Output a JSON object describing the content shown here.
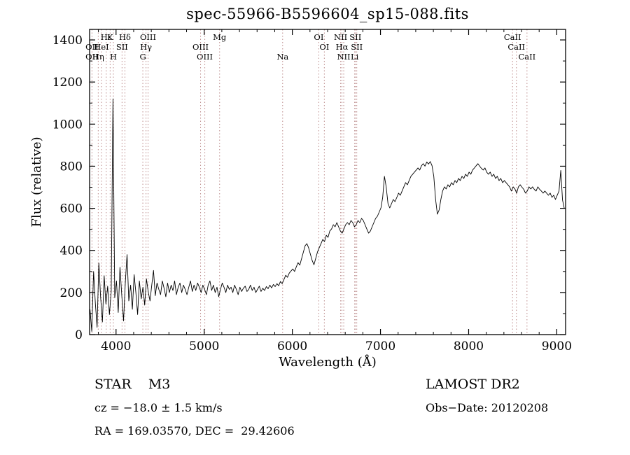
{
  "title": "spec-55966-B5596604_sp15-088.fits",
  "annotations": {
    "class_line": "STAR    M3",
    "survey": "LAMOST DR2",
    "cz_line": "cz = −18.0 ± 1.5 km/s",
    "obs_date": "Obs−Date: 20120208",
    "radec_line": "RA = 169.03570, DEC =  29.42606"
  },
  "chart_data": {
    "type": "line",
    "title": "spec-55966-B5596604_sp15-088.fits",
    "xlabel": "Wavelength (Å)",
    "ylabel": "Flux (relative)",
    "xlim": [
      3700,
      9100
    ],
    "ylim": [
      0,
      1450
    ],
    "x_ticks": [
      4000,
      5000,
      6000,
      7000,
      8000,
      9000
    ],
    "y_ticks": [
      0,
      200,
      400,
      600,
      800,
      1000,
      1200,
      1400
    ],
    "x_minor_step": 200,
    "y_minor_step": 100,
    "grid": false,
    "legend": "none",
    "colors": {
      "line": "#000000",
      "frame": "#000000",
      "marker": "#bb8a8a"
    },
    "x_start": 3705,
    "x_step": 20,
    "flux": [
      120,
      15,
      300,
      150,
      35,
      340,
      180,
      60,
      280,
      145,
      230,
      95,
      205,
      1120,
      175,
      255,
      105,
      320,
      185,
      65,
      245,
      380,
      160,
      235,
      120,
      285,
      200,
      95,
      255,
      170,
      225,
      140,
      265,
      205,
      160,
      235,
      305,
      185,
      245,
      215,
      190,
      255,
      220,
      180,
      245,
      200,
      235,
      210,
      255,
      190,
      225,
      245,
      200,
      235,
      215,
      190,
      225,
      255,
      205,
      235,
      210,
      245,
      225,
      200,
      235,
      215,
      190,
      235,
      255,
      210,
      235,
      200,
      225,
      180,
      215,
      245,
      225,
      200,
      235,
      215,
      225,
      200,
      235,
      215,
      190,
      225,
      205,
      220,
      230,
      205,
      215,
      235,
      210,
      225,
      200,
      215,
      230,
      205,
      220,
      210,
      228,
      218,
      235,
      222,
      238,
      228,
      242,
      232,
      252,
      242,
      262,
      282,
      272,
      292,
      302,
      312,
      300,
      322,
      342,
      330,
      362,
      392,
      422,
      432,
      412,
      382,
      352,
      332,
      362,
      392,
      412,
      432,
      452,
      442,
      472,
      462,
      492,
      502,
      522,
      512,
      532,
      512,
      492,
      482,
      502,
      522,
      532,
      522,
      542,
      532,
      512,
      522,
      542,
      532,
      552,
      542,
      522,
      502,
      482,
      492,
      512,
      532,
      552,
      562,
      582,
      602,
      652,
      752,
      702,
      622,
      602,
      622,
      642,
      632,
      652,
      672,
      662,
      682,
      702,
      722,
      712,
      732,
      752,
      762,
      772,
      782,
      792,
      782,
      802,
      812,
      800,
      820,
      810,
      822,
      802,
      752,
      642,
      572,
      592,
      642,
      682,
      702,
      692,
      712,
      702,
      722,
      712,
      732,
      722,
      742,
      732,
      752,
      742,
      762,
      752,
      772,
      762,
      782,
      792,
      802,
      812,
      800,
      790,
      782,
      792,
      772,
      762,
      772,
      752,
      762,
      742,
      752,
      732,
      742,
      722,
      732,
      722,
      712,
      702,
      682,
      702,
      692,
      672,
      702,
      712,
      700,
      690,
      672,
      682,
      702,
      692,
      702,
      690,
      682,
      702,
      690,
      682,
      672,
      682,
      672,
      662,
      672,
      652,
      662,
      642,
      662,
      682,
      780,
      640,
      600
    ],
    "line_markers": [
      3727,
      3798,
      3835,
      3889,
      3933,
      3970,
      4068,
      4101,
      4304,
      4340,
      4363,
      4959,
      5007,
      5175,
      5890,
      6300,
      6363,
      6548,
      6563,
      6583,
      6707,
      6716,
      6731,
      8498,
      8542,
      8662
    ],
    "label_rows": [
      [
        {
          "text": "Hε",
          "wavelength": 3889
        },
        {
          "text": "K",
          "wavelength": 3933
        },
        {
          "text": "Hδ",
          "wavelength": 4101
        },
        {
          "text": "OIII",
          "wavelength": 4363
        },
        {
          "text": "Mg",
          "wavelength": 5175
        },
        {
          "text": "OI",
          "wavelength": 6300
        },
        {
          "text": "NII",
          "wavelength": 6548
        },
        {
          "text": "SII",
          "wavelength": 6716
        },
        {
          "text": "CaII",
          "wavelength": 8498
        }
      ],
      [
        {
          "text": "OII",
          "wavelength": 3727
        },
        {
          "text": "HeI",
          "wavelength": 3835
        },
        {
          "text": "SII",
          "wavelength": 4068
        },
        {
          "text": "Hγ",
          "wavelength": 4340
        },
        {
          "text": "OIII",
          "wavelength": 4959
        },
        {
          "text": "OI",
          "wavelength": 6363
        },
        {
          "text": "Hα",
          "wavelength": 6563
        },
        {
          "text": "SII",
          "wavelength": 6731
        },
        {
          "text": "CaII",
          "wavelength": 8542
        }
      ],
      [
        {
          "text": "OII",
          "wavelength": 3727
        },
        {
          "text": "Hη",
          "wavelength": 3798
        },
        {
          "text": "H",
          "wavelength": 3970
        },
        {
          "text": "G",
          "wavelength": 4304
        },
        {
          "text": "OIII",
          "wavelength": 5007
        },
        {
          "text": "Na",
          "wavelength": 5890
        },
        {
          "text": "NII",
          "wavelength": 6583
        },
        {
          "text": "Li",
          "wavelength": 6707
        },
        {
          "text": "CaII",
          "wavelength": 8662
        }
      ]
    ]
  }
}
